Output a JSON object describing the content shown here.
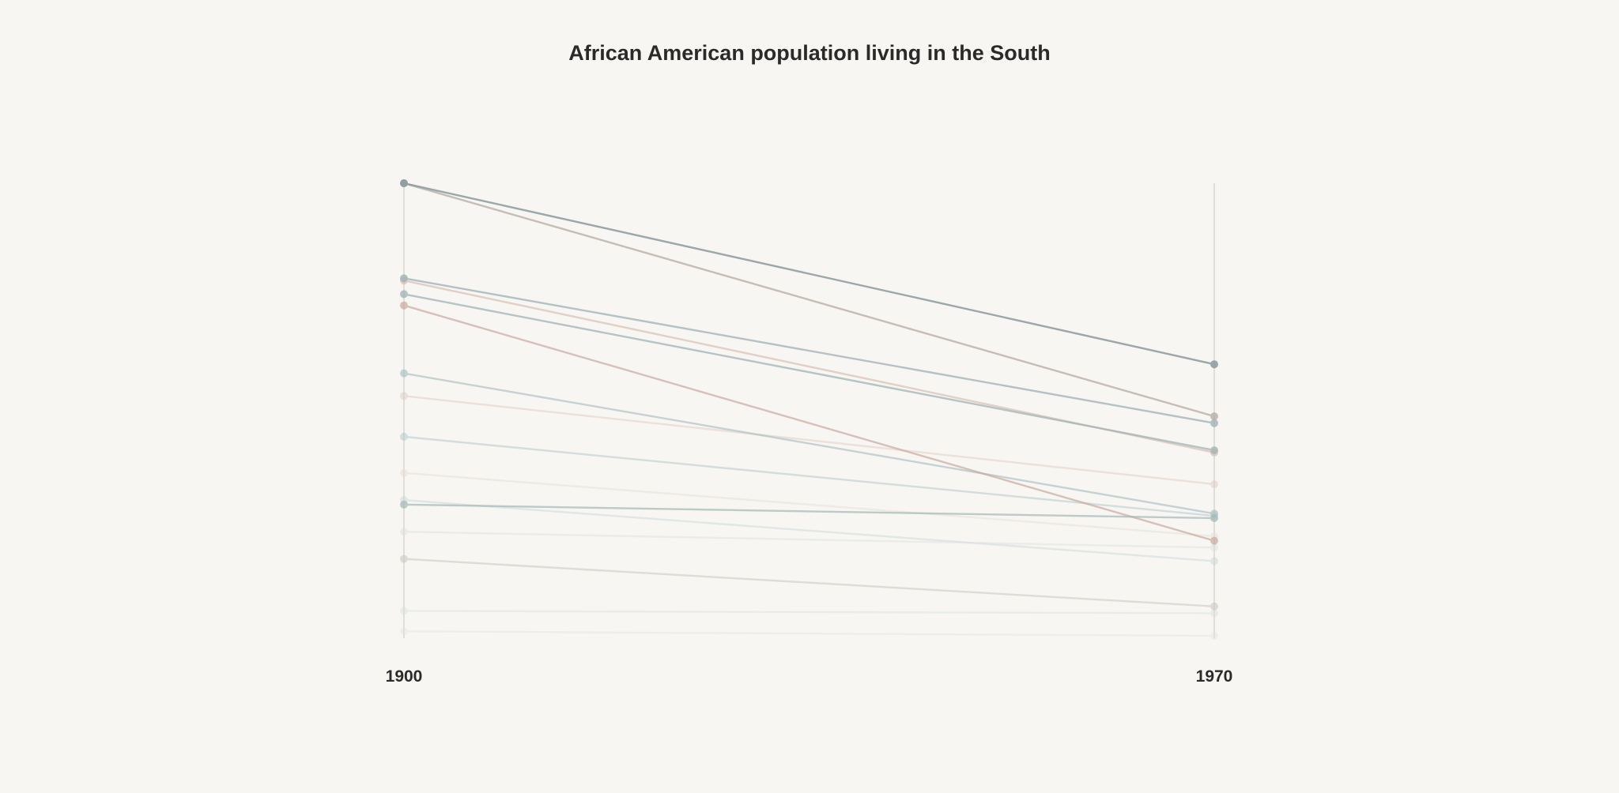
{
  "chart_data": {
    "type": "line",
    "title": "African American population living in the South",
    "x": [
      "1900",
      "1970"
    ],
    "xlabel": "",
    "ylabel": "",
    "ylim": [
      0,
      100
    ],
    "grid": false,
    "legend": "none",
    "series": [
      {
        "values": [
          100,
          60
        ],
        "color": "#8a9a9e",
        "opacity": 0.85
      },
      {
        "values": [
          100,
          48.5
        ],
        "color": "#b5a9a3",
        "opacity": 0.75
      },
      {
        "values": [
          79,
          47
        ],
        "color": "#9db0b5",
        "opacity": 0.75
      },
      {
        "values": [
          78.5,
          40.5
        ],
        "color": "#d8bfb2",
        "opacity": 0.7
      },
      {
        "values": [
          75.5,
          41
        ],
        "color": "#9fb3b6",
        "opacity": 0.75
      },
      {
        "values": [
          73,
          21
        ],
        "color": "#c9aaa0",
        "opacity": 0.7
      },
      {
        "values": [
          58,
          27
        ],
        "color": "#a9bfc2",
        "opacity": 0.65
      },
      {
        "values": [
          53,
          33.5
        ],
        "color": "#e1cfc6",
        "opacity": 0.55
      },
      {
        "values": [
          44,
          26.5
        ],
        "color": "#b7c9cd",
        "opacity": 0.55
      },
      {
        "values": [
          36,
          22
        ],
        "color": "#e7ddd6",
        "opacity": 0.5
      },
      {
        "values": [
          30,
          16.5
        ],
        "color": "#c9d8da",
        "opacity": 0.5
      },
      {
        "values": [
          29,
          26
        ],
        "color": "#a3b8b6",
        "opacity": 0.7
      },
      {
        "values": [
          23,
          19.5
        ],
        "color": "#dde2e2",
        "opacity": 0.5
      },
      {
        "values": [
          17,
          6.5
        ],
        "color": "#cfc9c3",
        "opacity": 0.6
      },
      {
        "values": [
          5.5,
          5
        ],
        "color": "#d8e0e0",
        "opacity": 0.45
      },
      {
        "values": [
          1,
          0
        ],
        "color": "#e4e3df",
        "opacity": 0.45
      }
    ]
  }
}
